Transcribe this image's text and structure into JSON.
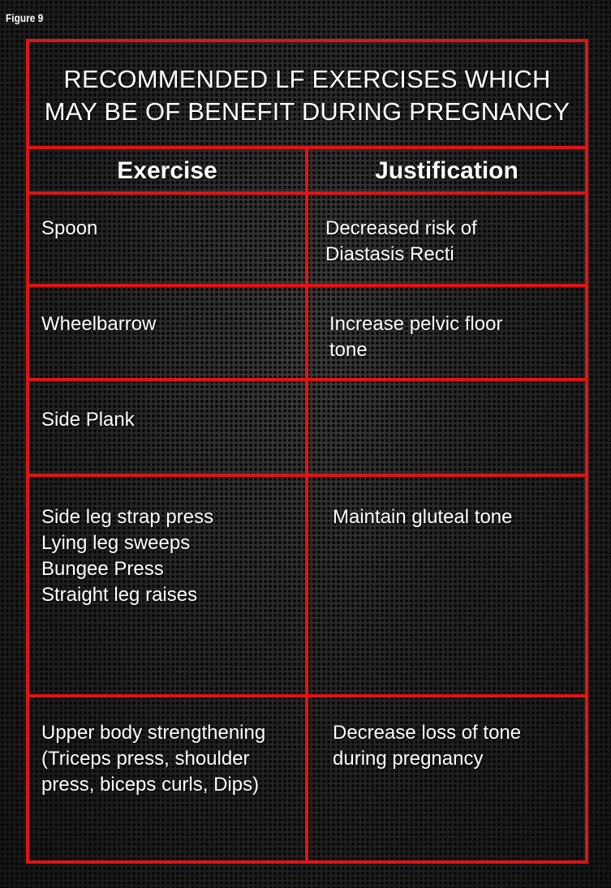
{
  "figure_label": "Figure 9",
  "title_lines": [
    "RECOMMENDED LF EXERCISES WHICH",
    "MAY BE OF BENEFIT DURING PREGNANCY"
  ],
  "headers": {
    "exercise": "Exercise",
    "justification": "Justification"
  },
  "rows": [
    {
      "exercise": "Spoon",
      "justification": "Decreased risk of\nDiastasis Recti"
    },
    {
      "exercise": "Wheelbarrow",
      "justification": "Increase pelvic floor\ntone"
    },
    {
      "exercise": "Side Plank",
      "justification": ""
    },
    {
      "exercise": "Side leg strap press\nLying leg sweeps\nBungee Press\nStraight leg raises",
      "justification": "Maintain gluteal tone"
    },
    {
      "exercise": "Upper body strengthening\n(Triceps press, shoulder\npress, biceps curls, Dips)",
      "justification": "Decrease loss of tone\nduring pregnancy"
    }
  ],
  "colors": {
    "border": "#e11414",
    "text": "#ffffff",
    "background": "#1a1a1a"
  }
}
